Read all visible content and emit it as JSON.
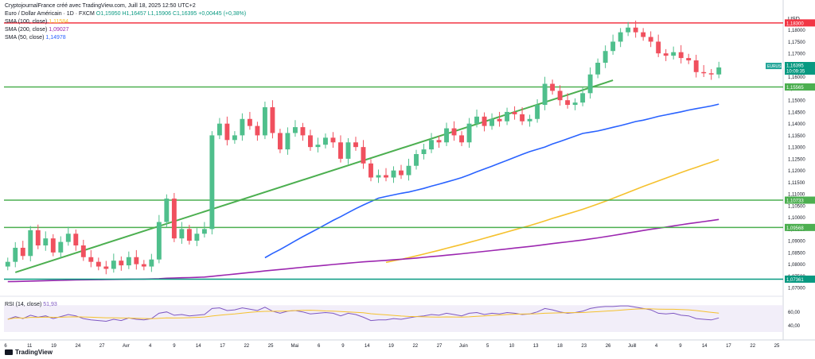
{
  "header": {
    "title": "Euro / Dollar Américain · 1D · FXCM",
    "author_line": "CryptojournalFrance créé avec TradingView.com, Juill 18, 2025 12:50 UTC+2",
    "ohlc": {
      "o": "O1,15950",
      "h": "H1,16457",
      "l": "L1,15906",
      "c": "C1,16395",
      "chg": "+0,00445 (+0,38%)"
    },
    "indicators": [
      {
        "label": "SMA (100, close)",
        "value": "1,11584",
        "color": "#f5c12e"
      },
      {
        "label": "SMA (200, close)",
        "value": "1,09027",
        "color": "#9c27b0"
      },
      {
        "label": "SMA (50, close)",
        "value": "1,14978",
        "color": "#2962ff"
      }
    ],
    "rsi_label": "RSI (14, close)",
    "rsi_value": "51,93"
  },
  "footer": {
    "brand": "TradingView"
  },
  "chart_data": {
    "type": "candlestick",
    "currency": "USD",
    "symbol": "EURUSD",
    "last_price": "1,16395",
    "countdown": "10:09:35",
    "ylim": [
      1.068,
      1.186
    ],
    "y_ticks": [
      "1,18000",
      "1,17500",
      "1,17000",
      "1,16500",
      "1,16000",
      "1,15500",
      "1,15000",
      "1,14500",
      "1,14000",
      "1,13500",
      "1,13000",
      "1,12500",
      "1,12000",
      "1,11500",
      "1,11000",
      "1,10500",
      "1,10000",
      "1,09500",
      "1,09000",
      "1,08500",
      "1,08000",
      "1,07500",
      "1,07000"
    ],
    "x_ticks": [
      "6",
      "11",
      "19",
      "24",
      "27",
      "Avr",
      "4",
      "9",
      "14",
      "17",
      "22",
      "25",
      "Mai",
      "6",
      "9",
      "14",
      "19",
      "22",
      "27",
      "Juin",
      "5",
      "10",
      "13",
      "18",
      "23",
      "26",
      "Juill",
      "4",
      "9",
      "14",
      "17",
      "22",
      "25"
    ],
    "levels": [
      {
        "value": 1.183,
        "label": "1,18300",
        "color": "#f23645"
      },
      {
        "value": 1.15565,
        "label": "1,15565",
        "color": "#4caf50"
      },
      {
        "value": 1.10733,
        "label": "1,10733",
        "color": "#4caf50"
      },
      {
        "value": 1.09568,
        "label": "1,09568",
        "color": "#4caf50"
      },
      {
        "value": 1.07361,
        "label": "1,07361",
        "color": "#089981"
      }
    ],
    "trendline": {
      "from": [
        1,
        1.0765
      ],
      "to": [
        80,
        1.1585
      ],
      "color": "#4caf50"
    },
    "close": [
      1.081,
      1.087,
      1.0835,
      1.0945,
      1.088,
      1.091,
      1.085,
      1.0895,
      1.093,
      1.088,
      1.083,
      1.081,
      1.079,
      1.078,
      1.0815,
      1.0795,
      1.083,
      1.08,
      1.079,
      1.082,
      1.098,
      1.108,
      1.091,
      1.095,
      1.09,
      1.093,
      1.095,
      1.135,
      1.14,
      1.133,
      1.135,
      1.142,
      1.139,
      1.135,
      1.147,
      1.136,
      1.129,
      1.136,
      1.1385,
      1.135,
      1.13,
      1.131,
      1.134,
      1.132,
      1.125,
      1.132,
      1.13,
      1.123,
      1.117,
      1.118,
      1.117,
      1.12,
      1.118,
      1.122,
      1.127,
      1.129,
      1.133,
      1.132,
      1.138,
      1.135,
      1.132,
      1.14,
      1.143,
      1.139,
      1.142,
      1.141,
      1.145,
      1.144,
      1.141,
      1.142,
      1.148,
      1.157,
      1.154,
      1.15,
      1.148,
      1.149,
      1.153,
      1.161,
      1.166,
      1.171,
      1.175,
      1.179,
      1.181,
      1.179,
      1.177,
      1.175,
      1.17,
      1.169,
      1.1705,
      1.168,
      1.167,
      1.162,
      1.1615,
      1.161,
      1.164
    ]
  },
  "rsi_data": {
    "ylim": [
      30,
      75
    ],
    "ticks": [
      "60,00",
      "40,00"
    ],
    "values": [
      49,
      53,
      50,
      55,
      52,
      54,
      50,
      53,
      56,
      54,
      50,
      48,
      47,
      46,
      49,
      47,
      51,
      49,
      48,
      50,
      58,
      60,
      55,
      56,
      54,
      55,
      56,
      65,
      66,
      62,
      63,
      66,
      64,
      62,
      67,
      61,
      58,
      61,
      62,
      60,
      57,
      58,
      59,
      58,
      54,
      58,
      56,
      52,
      47,
      48,
      48,
      50,
      49,
      51,
      53,
      54,
      56,
      55,
      58,
      56,
      54,
      58,
      59,
      56,
      58,
      57,
      59,
      58,
      56,
      57,
      60,
      65,
      63,
      60,
      58,
      59,
      61,
      65,
      67,
      68,
      68,
      69,
      69,
      67,
      65,
      63,
      58,
      57,
      58,
      55,
      54,
      50,
      49,
      48,
      51
    ]
  }
}
